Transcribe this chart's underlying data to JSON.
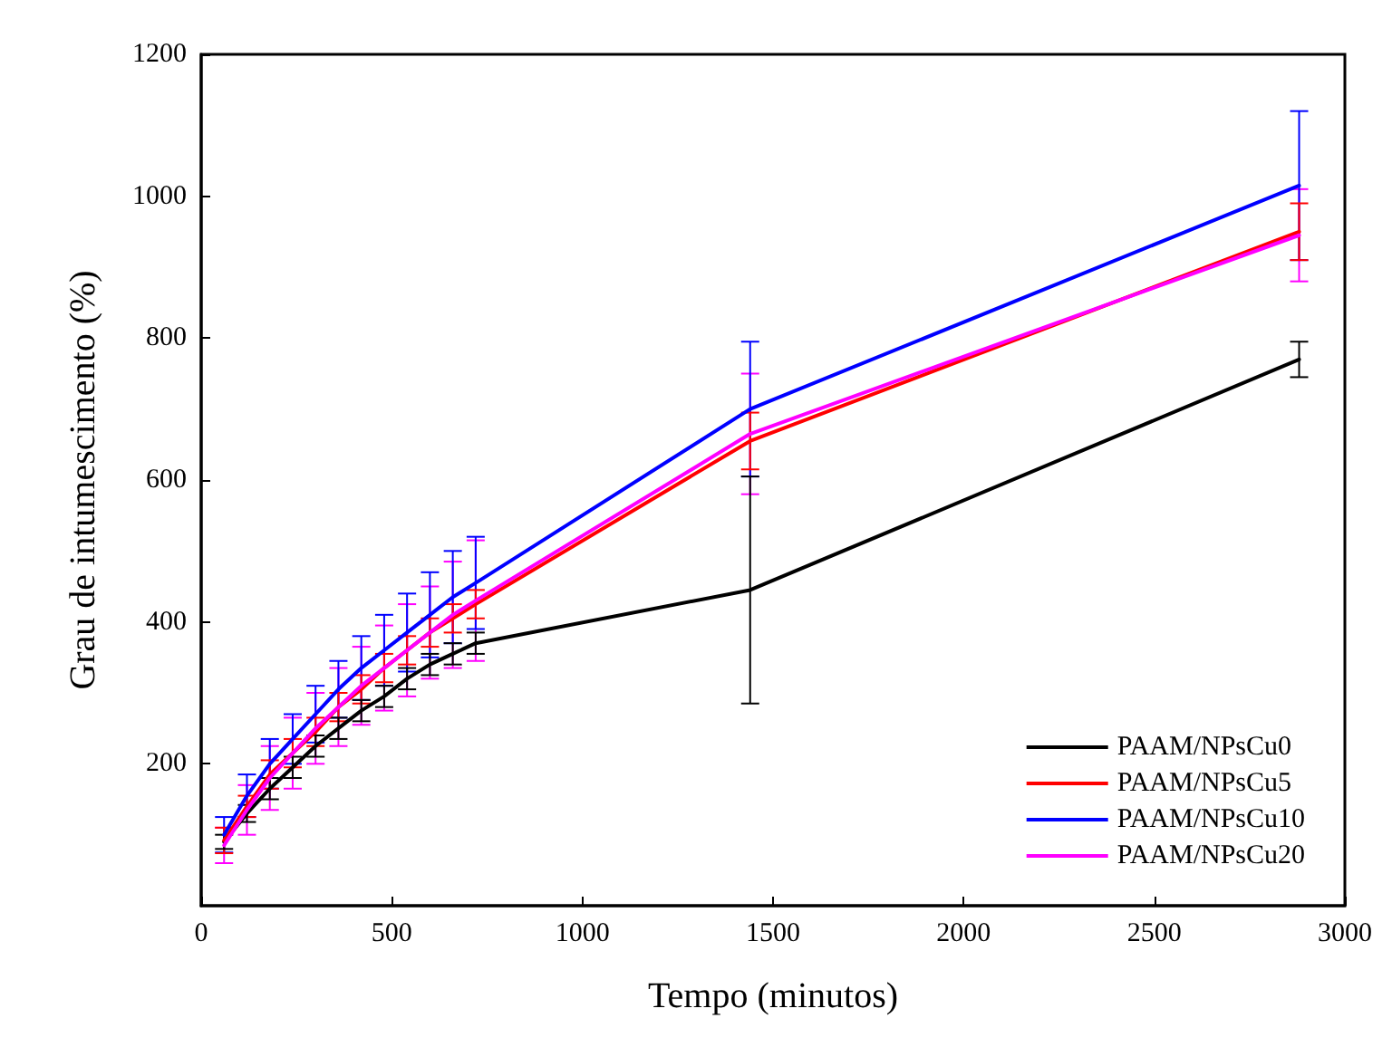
{
  "chart_data": {
    "type": "line",
    "xlabel": "Tempo (minutos)",
    "ylabel": "Grau de intumescimento (%)",
    "x": [
      60,
      120,
      180,
      240,
      300,
      360,
      420,
      480,
      540,
      600,
      660,
      720,
      1440,
      2880
    ],
    "xlim": [
      0,
      3000
    ],
    "xticks": [
      0,
      500,
      1000,
      1500,
      2000,
      2500,
      3000
    ],
    "ylim": [
      0,
      1200
    ],
    "yticks": [
      200,
      400,
      600,
      800,
      1000,
      1200
    ],
    "grid": false,
    "legend": "bottom right",
    "marker": "none",
    "line_style": "solid",
    "series": [
      {
        "name": "PAAM/NPsCu0",
        "color": "#000000",
        "values": [
          90,
          130,
          165,
          195,
          225,
          250,
          275,
          295,
          320,
          340,
          355,
          370,
          445,
          770
        ],
        "errors": [
          10,
          12,
          15,
          15,
          15,
          15,
          15,
          15,
          15,
          15,
          15,
          15,
          160,
          25
        ]
      },
      {
        "name": "PAAM/NPsCu5",
        "color": "#ff0000",
        "values": [
          92,
          140,
          185,
          215,
          245,
          280,
          305,
          335,
          360,
          385,
          405,
          425,
          655,
          950
        ],
        "errors": [
          18,
          15,
          20,
          20,
          20,
          20,
          20,
          20,
          20,
          20,
          20,
          20,
          40,
          40
        ]
      },
      {
        "name": "PAAM/NPsCu10",
        "color": "#0000ff",
        "values": [
          100,
          155,
          200,
          235,
          270,
          305,
          335,
          360,
          385,
          410,
          435,
          455,
          700,
          1015
        ],
        "errors": [
          25,
          30,
          35,
          35,
          40,
          40,
          45,
          50,
          55,
          60,
          65,
          65,
          95,
          105
        ]
      },
      {
        "name": "PAAM/NPsCu20",
        "color": "#ff00ff",
        "values": [
          85,
          135,
          180,
          215,
          250,
          280,
          310,
          335,
          360,
          385,
          410,
          430,
          665,
          945
        ],
        "errors": [
          25,
          35,
          45,
          50,
          50,
          55,
          55,
          60,
          65,
          65,
          75,
          85,
          85,
          65
        ]
      }
    ]
  }
}
